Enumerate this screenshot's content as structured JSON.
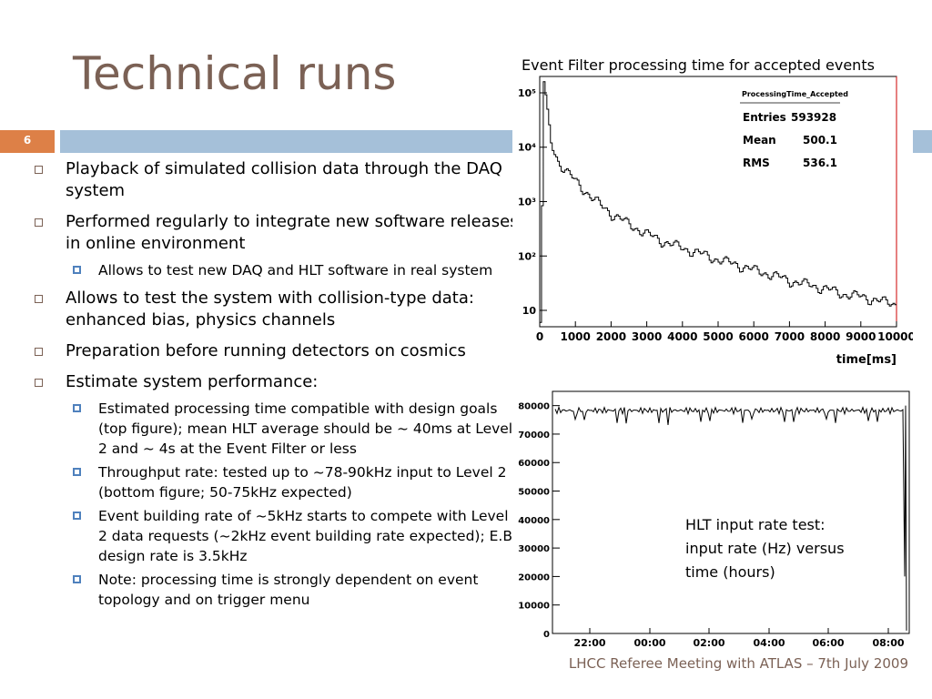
{
  "slide": {
    "title": "Technical runs",
    "slide_number": "6",
    "footer": "LHCC Referee Meeting with ATLAS – 7th July 2009",
    "accent_color": "#dd8047",
    "bar_color": "#a5c0d9",
    "title_color": "#7b6155"
  },
  "bullets": [
    {
      "text": "Playback of simulated collision data through the DAQ system"
    },
    {
      "text": "Performed regularly to integrate new software releases in online environment",
      "sub": [
        "Allows to test new DAQ and HLT software in real system"
      ]
    },
    {
      "text": "Allows to test the system with collision-type data: enhanced bias, physics channels"
    },
    {
      "text": "Preparation before running detectors on cosmics"
    },
    {
      "text": "Estimate system performance:",
      "sub": [
        "Estimated processing time compatible with design goals (top figure); mean HLT average should be ~ 40ms at Level 2 and ~ 4s at the Event Filter or less",
        "Throughput rate: tested up to ~78-90kHz input to Level 2 (bottom figure; 50-75kHz expected)",
        "Event building rate of ~5kHz starts to compete with Level 2 data requests (~2kHz event building rate expected); E.B. design rate is 3.5kHz",
        "Note: processing time is strongly dependent on event topology and on trigger menu"
      ]
    }
  ],
  "top_plot_caption": "Event Filter processing time for accepted events",
  "bottom_plot_caption": [
    "HLT input rate test:",
    "input rate (Hz) versus",
    "time (hours)"
  ],
  "chart_data": [
    {
      "type": "line",
      "title": "ProcessingTime_Accepted",
      "xlabel": "time[ms]",
      "ylabel": "",
      "log_y": true,
      "xlim": [
        0,
        10000
      ],
      "ylim": [
        5,
        200000
      ],
      "x_ticks": [
        "0",
        "1000",
        "2000",
        "3000",
        "4000",
        "5000",
        "6000",
        "7000",
        "8000",
        "9000",
        "10000"
      ],
      "y_ticks": [
        "10",
        "10²",
        "10³",
        "10⁴",
        "10⁵"
      ],
      "stats": [
        {
          "label": "Entries",
          "value": "593928"
        },
        {
          "label": "Mean",
          "value": "500.1"
        },
        {
          "label": "RMS",
          "value": "536.1"
        }
      ],
      "x": [
        0,
        100,
        200,
        300,
        400,
        500,
        750,
        1000,
        1250,
        1500,
        1750,
        2000,
        2500,
        3000,
        3500,
        4000,
        4500,
        5000,
        5500,
        6000,
        6500,
        7000,
        7500,
        8000,
        8500,
        9000,
        9500,
        10000
      ],
      "y": [
        5,
        160000,
        40000,
        12000,
        8000,
        5500,
        3500,
        2300,
        1600,
        1100,
        800,
        600,
        380,
        250,
        180,
        140,
        110,
        85,
        70,
        55,
        45,
        35,
        30,
        25,
        20,
        18,
        15,
        13
      ]
    },
    {
      "type": "line",
      "title": "",
      "xlabel": "",
      "ylabel": "",
      "ylim": [
        0,
        85000
      ],
      "x_ticks": [
        "22:00",
        "00:00",
        "02:00",
        "04:00",
        "06:00",
        "08:00"
      ],
      "y_ticks": [
        "0",
        "10000",
        "20000",
        "30000",
        "40000",
        "50000",
        "60000",
        "70000",
        "80000"
      ],
      "x": [
        21.0,
        21.5,
        22,
        23,
        0,
        1,
        2,
        3,
        4,
        5,
        6,
        7,
        8,
        8.3,
        8.35,
        8.4
      ],
      "y": [
        78000,
        79000,
        78500,
        78000,
        78500,
        78000,
        78200,
        77800,
        78300,
        77900,
        78100,
        77700,
        78000,
        77500,
        20000,
        82000
      ]
    }
  ]
}
